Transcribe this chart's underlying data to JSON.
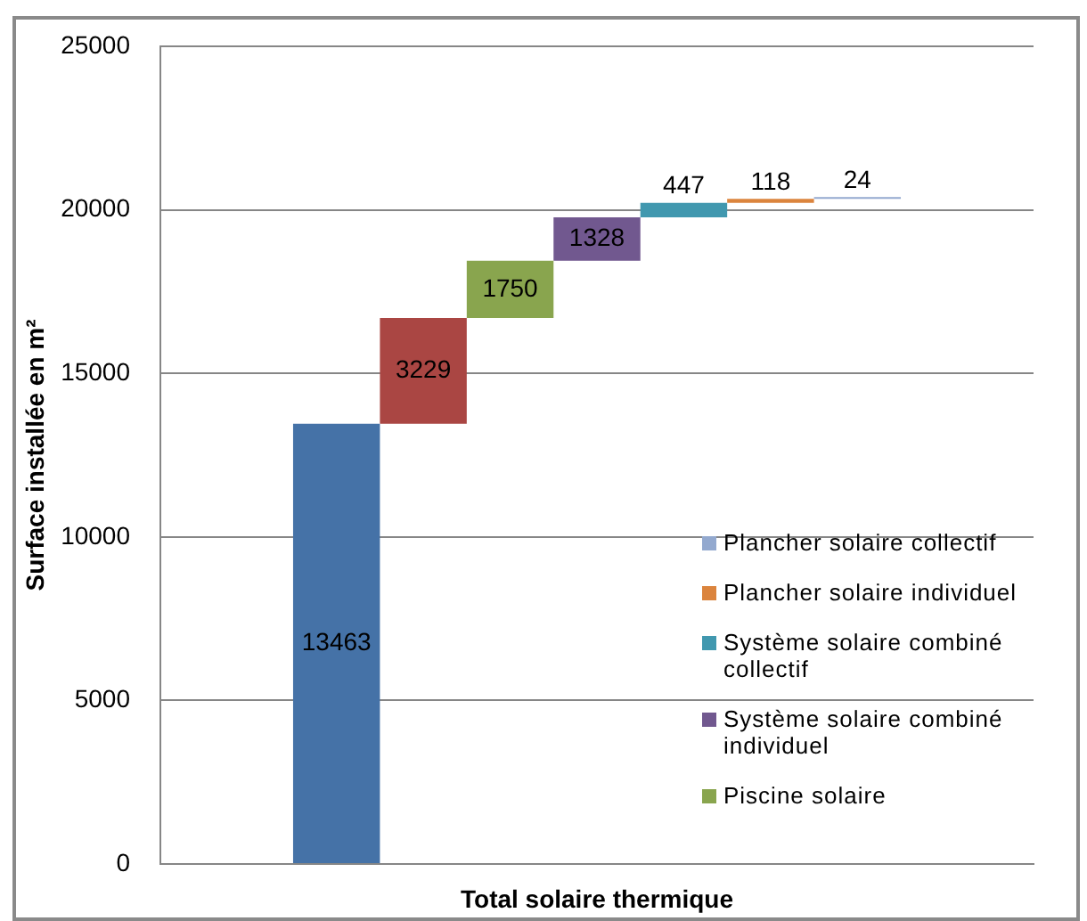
{
  "chart_data": {
    "type": "bar",
    "ylabel": "Surface installée en m²",
    "categories": [
      "Total solaire thermique"
    ],
    "series": [
      {
        "color": "#4572a7",
        "values": [
          13463
        ],
        "base": [
          0
        ]
      },
      {
        "color": "#aa4643",
        "values": [
          3229
        ],
        "base": [
          13463
        ]
      },
      {
        "name": "Piscine solaire",
        "color": "#89a54e",
        "values": [
          1750
        ],
        "base": [
          16692
        ]
      },
      {
        "name": "Système solaire combiné individuel",
        "color": "#71588f",
        "values": [
          1328
        ],
        "base": [
          18442
        ]
      },
      {
        "name": "Système solaire combiné collectif",
        "color": "#4198af",
        "values": [
          447
        ],
        "base": [
          19770
        ]
      },
      {
        "name": "Plancher solaire individuel",
        "color": "#db843d",
        "values": [
          118
        ],
        "base": [
          20217
        ]
      },
      {
        "name": "Plancher solaire collectif",
        "color": "#93a9cf",
        "values": [
          24
        ],
        "base": [
          20335
        ]
      }
    ],
    "ylim": [
      0,
      25000
    ],
    "yticks": [
      0,
      5000,
      10000,
      15000,
      20000,
      25000
    ],
    "grid": "y",
    "legend": "bottom right",
    "data_labels": true
  }
}
